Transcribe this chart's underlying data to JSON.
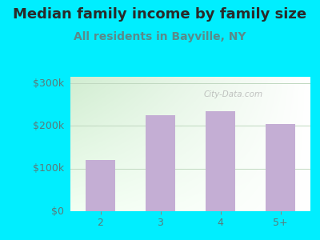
{
  "title": "Median family income by family size",
  "subtitle": "All residents in Bayville, NY",
  "categories": [
    "2",
    "3",
    "4",
    "5+"
  ],
  "values": [
    120000,
    225000,
    235000,
    205000
  ],
  "bar_color": "#c4aed4",
  "bg_color": "#00eeff",
  "yticks": [
    0,
    100000,
    200000,
    300000
  ],
  "ytick_labels": [
    "$0",
    "$100k",
    "$200k",
    "$300k"
  ],
  "ylim": [
    0,
    315000
  ],
  "title_fontsize": 13,
  "subtitle_fontsize": 10,
  "title_color": "#2a2a2a",
  "subtitle_color": "#5a8a8a",
  "tick_color": "#5a7a7a",
  "watermark": "City-Data.com",
  "grid_color": "#c0d8c0"
}
